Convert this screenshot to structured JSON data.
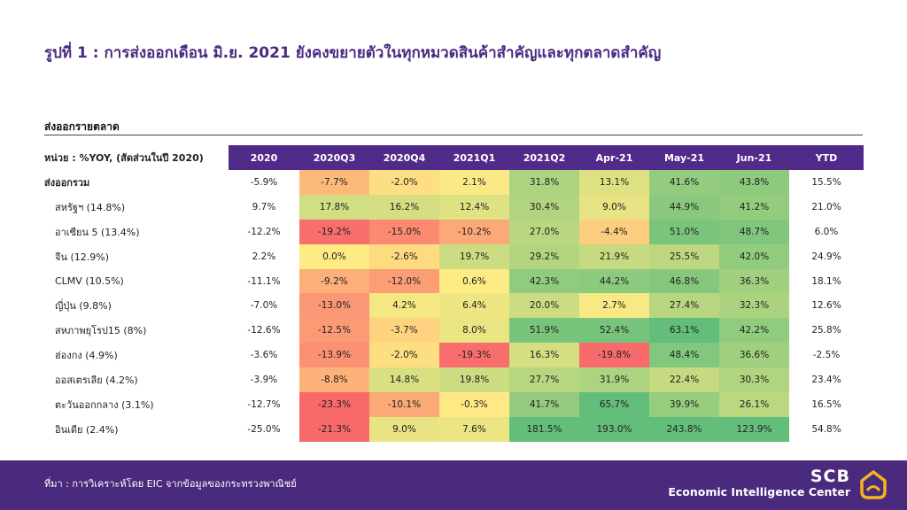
{
  "title": "รูปที่ 1 : การส่งออกเดือน มิ.ย. 2021 ยังคงขยายตัวในทุกหมวดสินค้าสำคัญและทุกตลาดสำคัญ",
  "section_title": "ส่งออกรายตลาด",
  "chart_data": {
    "type": "heatmap",
    "unit_label": "หน่วย : %YOY, (สัดส่วนในปี 2020)",
    "columns": [
      "2020",
      "2020Q3",
      "2020Q4",
      "2021Q1",
      "2021Q2",
      "Apr-21",
      "May-21",
      "Jun-21",
      "YTD"
    ],
    "colored_columns": [
      "2020Q3",
      "2020Q4",
      "2021Q1",
      "2021Q2",
      "Apr-21",
      "May-21",
      "Jun-21"
    ],
    "color_scale": {
      "low": "#f8696b",
      "mid": "#ffeb84",
      "high": "#63be7b",
      "cap_low": -20,
      "cap_high": 60
    },
    "rows": [
      {
        "label": "ส่งออกรวม",
        "values": [
          -5.9,
          -7.7,
          -2.0,
          2.1,
          31.8,
          13.1,
          41.6,
          43.8,
          15.5
        ]
      },
      {
        "label": "สหรัฐฯ (14.8%)",
        "values": [
          9.7,
          17.8,
          16.2,
          12.4,
          30.4,
          9.0,
          44.9,
          41.2,
          21.0
        ]
      },
      {
        "label": "อาเซียน 5 (13.4%)",
        "values": [
          -12.2,
          -19.2,
          -15.0,
          -10.2,
          27.0,
          -4.4,
          51.0,
          48.7,
          6.0
        ]
      },
      {
        "label": "จีน (12.9%)",
        "values": [
          2.2,
          0.0,
          -2.6,
          19.7,
          29.2,
          21.9,
          25.5,
          42.0,
          24.9
        ]
      },
      {
        "label": "CLMV (10.5%)",
        "values": [
          -11.1,
          -9.2,
          -12.0,
          0.6,
          42.3,
          44.2,
          46.8,
          36.3,
          18.1
        ]
      },
      {
        "label": "ญี่ปุ่น (9.8%)",
        "values": [
          -7.0,
          -13.0,
          4.2,
          6.4,
          20.0,
          2.7,
          27.4,
          32.3,
          12.6
        ]
      },
      {
        "label": "สหภาพยุโรป15 (8%)",
        "values": [
          -12.6,
          -12.5,
          -3.7,
          8.0,
          51.9,
          52.4,
          63.1,
          42.2,
          25.8
        ]
      },
      {
        "label": "ฮ่องกง (4.9%)",
        "values": [
          -3.6,
          -13.9,
          -2.0,
          -19.3,
          16.3,
          -19.8,
          48.4,
          36.6,
          -2.5
        ]
      },
      {
        "label": "ออสเตรเลีย (4.2%)",
        "values": [
          -3.9,
          -8.8,
          14.8,
          19.8,
          27.7,
          31.9,
          22.4,
          30.3,
          23.4
        ]
      },
      {
        "label": "ตะวันออกกลาง (3.1%)",
        "values": [
          -12.7,
          -23.3,
          -10.1,
          -0.3,
          41.7,
          65.7,
          39.9,
          26.1,
          16.5
        ]
      },
      {
        "label": "อินเดีย (2.4%)",
        "values": [
          -25.0,
          -21.3,
          9.0,
          7.6,
          181.5,
          193.0,
          243.8,
          123.9,
          54.8
        ]
      }
    ]
  },
  "footer": {
    "source": "ที่มา : การวิเคราะห์โดย EIC จากข้อมูลของกระทรวงพาณิชย์",
    "brand_name": "SCB",
    "brand_sub": "Economic Intelligence Center",
    "logo_icon": "scb-logo-icon"
  }
}
